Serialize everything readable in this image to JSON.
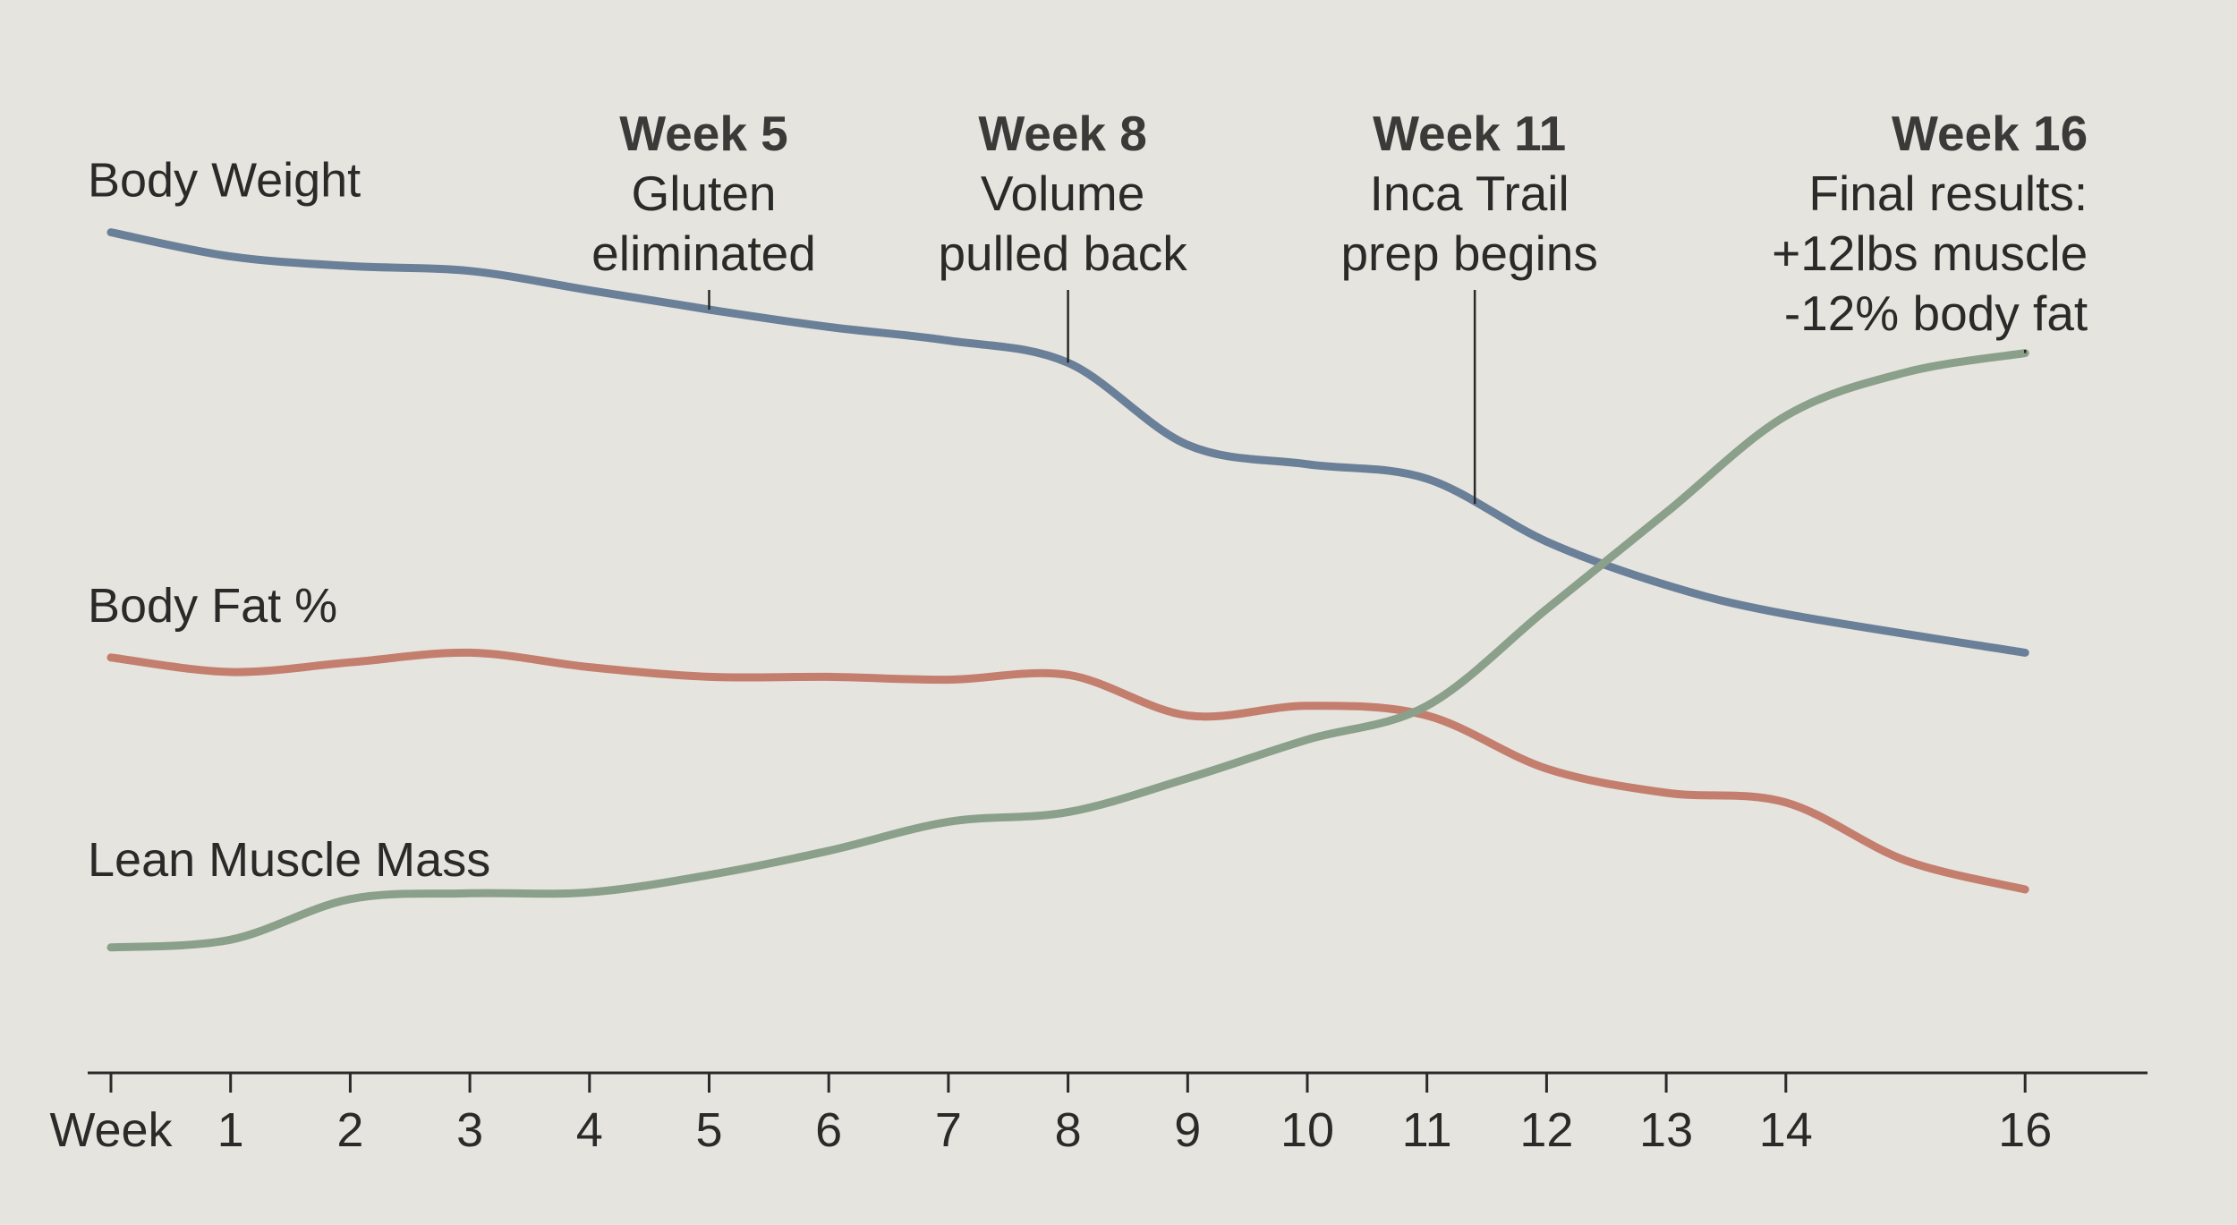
{
  "chart_data": {
    "type": "line",
    "title": "",
    "xlabel": "Week",
    "ylabel": "",
    "xlim": [
      0,
      16.5
    ],
    "ylim": [
      0,
      100
    ],
    "grid": false,
    "x_ticks": [
      {
        "x": 1,
        "label": "1"
      },
      {
        "x": 2,
        "label": "2"
      },
      {
        "x": 3,
        "label": "3"
      },
      {
        "x": 4,
        "label": "4"
      },
      {
        "x": 5,
        "label": "5"
      },
      {
        "x": 6,
        "label": "6"
      },
      {
        "x": 7,
        "label": "7"
      },
      {
        "x": 8,
        "label": "8"
      },
      {
        "x": 9,
        "label": "9"
      },
      {
        "x": 10,
        "label": "10"
      },
      {
        "x": 11,
        "label": "11"
      },
      {
        "x": 12,
        "label": "12"
      },
      {
        "x": 13,
        "label": "13"
      },
      {
        "x": 14,
        "label": "14"
      },
      {
        "x": 16,
        "label": "16"
      }
    ],
    "series": [
      {
        "name": "Body Weight",
        "color": "#6a7f98",
        "points": [
          [
            0,
            88
          ],
          [
            1,
            85.5
          ],
          [
            2,
            84.5
          ],
          [
            3,
            84
          ],
          [
            4,
            82
          ],
          [
            5,
            80
          ],
          [
            6,
            78.2
          ],
          [
            7,
            76.8
          ],
          [
            8,
            74.5
          ],
          [
            9,
            66
          ],
          [
            10,
            64
          ],
          [
            11,
            62.5
          ],
          [
            12,
            56
          ],
          [
            13,
            51.5
          ],
          [
            14,
            48.5
          ],
          [
            16,
            44.5
          ]
        ]
      },
      {
        "name": "Body Fat %",
        "color": "#c47e6e",
        "points": [
          [
            0,
            44
          ],
          [
            1,
            42.5
          ],
          [
            2,
            43.5
          ],
          [
            3,
            44.5
          ],
          [
            4,
            43
          ],
          [
            5,
            42
          ],
          [
            6,
            42
          ],
          [
            7,
            41.7
          ],
          [
            8,
            42.2
          ],
          [
            9,
            38
          ],
          [
            10,
            39
          ],
          [
            11,
            38
          ],
          [
            12,
            32.5
          ],
          [
            13,
            30
          ],
          [
            14,
            29
          ],
          [
            15,
            23
          ],
          [
            16,
            20
          ]
        ]
      },
      {
        "name": "Lean Muscle Mass",
        "color": "#8aa08a",
        "points": [
          [
            0,
            14
          ],
          [
            1,
            14.8
          ],
          [
            2,
            19
          ],
          [
            3,
            19.6
          ],
          [
            4,
            19.7
          ],
          [
            5,
            21.5
          ],
          [
            6,
            24
          ],
          [
            7,
            27
          ],
          [
            8,
            28
          ],
          [
            9,
            31.5
          ],
          [
            10,
            35.5
          ],
          [
            11,
            39
          ],
          [
            12,
            49
          ],
          [
            13,
            59
          ],
          [
            14,
            69
          ],
          [
            15,
            73.5
          ],
          [
            16,
            75.5
          ]
        ]
      }
    ],
    "annotations": [
      {
        "week_head": "Week 5",
        "lines": [
          "Gluten",
          "eliminated"
        ],
        "x": 5,
        "series": "Body Weight",
        "align": "middle"
      },
      {
        "week_head": "Week 8",
        "lines": [
          "Volume",
          "pulled back"
        ],
        "x": 8,
        "series": "Body Weight",
        "align": "middle"
      },
      {
        "week_head": "Week 11",
        "lines": [
          "Inca Trail",
          "prep begins"
        ],
        "x": 11.4,
        "series": "Body Weight",
        "align": "middle"
      },
      {
        "week_head": "Week 16",
        "lines": [
          "Final results:",
          "+12lbs muscle",
          "-12% body fat"
        ],
        "x": 16,
        "series": "Lean Muscle Mass",
        "align": "end"
      }
    ]
  }
}
